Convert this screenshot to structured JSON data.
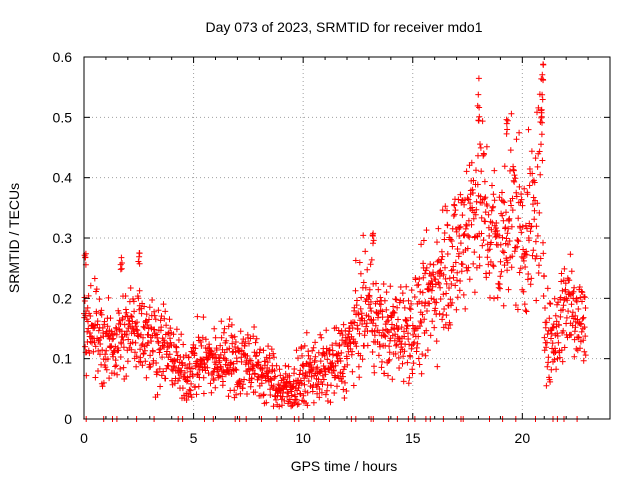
{
  "chart_data": {
    "type": "scatter",
    "title": "Day 073 of 2023, SRMTID for receiver mdo1",
    "xlabel": "GPS time / hours",
    "ylabel": "SRMTID / TECUs",
    "xlim": [
      0,
      24
    ],
    "ylim": [
      0,
      0.6
    ],
    "grid": true,
    "x_ticks": [
      0,
      5,
      10,
      15,
      20
    ],
    "x_tick_labels": [
      "0",
      "5",
      "10",
      "15",
      "20"
    ],
    "y_ticks": [
      0,
      0.1,
      0.2,
      0.3,
      0.4,
      0.5,
      0.6
    ],
    "y_tick_labels": [
      "0",
      "0.1",
      "0.2",
      "0.3",
      "0.4",
      "0.5",
      "0.6"
    ],
    "marker": "+",
    "series": [
      {
        "name": "SRMTID",
        "color": "#ff0000",
        "trend": [
          [
            0.0,
            0.17
          ],
          [
            0.5,
            0.15
          ],
          [
            1.0,
            0.12
          ],
          [
            1.5,
            0.13
          ],
          [
            2.0,
            0.14
          ],
          [
            2.5,
            0.16
          ],
          [
            3.0,
            0.14
          ],
          [
            3.5,
            0.12
          ],
          [
            4.0,
            0.11
          ],
          [
            4.5,
            0.07
          ],
          [
            5.0,
            0.09
          ],
          [
            5.5,
            0.1
          ],
          [
            6.0,
            0.09
          ],
          [
            6.5,
            0.11
          ],
          [
            7.0,
            0.09
          ],
          [
            7.5,
            0.1
          ],
          [
            8.0,
            0.08
          ],
          [
            8.5,
            0.07
          ],
          [
            9.0,
            0.05
          ],
          [
            9.5,
            0.05
          ],
          [
            10.0,
            0.07
          ],
          [
            10.5,
            0.08
          ],
          [
            11.0,
            0.08
          ],
          [
            11.5,
            0.09
          ],
          [
            12.0,
            0.11
          ],
          [
            12.5,
            0.16
          ],
          [
            13.0,
            0.19
          ],
          [
            13.5,
            0.15
          ],
          [
            14.0,
            0.14
          ],
          [
            14.5,
            0.15
          ],
          [
            15.0,
            0.15
          ],
          [
            15.5,
            0.18
          ],
          [
            16.0,
            0.22
          ],
          [
            16.5,
            0.26
          ],
          [
            17.0,
            0.27
          ],
          [
            17.5,
            0.33
          ],
          [
            18.0,
            0.38
          ],
          [
            18.5,
            0.31
          ],
          [
            19.0,
            0.28
          ],
          [
            19.5,
            0.36
          ],
          [
            20.0,
            0.3
          ],
          [
            20.5,
            0.32
          ],
          [
            20.9,
            0.42
          ],
          [
            21.0,
            0.2
          ],
          [
            21.2,
            0.12
          ],
          [
            21.5,
            0.14
          ],
          [
            22.0,
            0.2
          ],
          [
            22.5,
            0.18
          ],
          [
            22.9,
            0.15
          ]
        ],
        "peaks": [
          [
            0.05,
            0.28
          ],
          [
            1.7,
            0.27
          ],
          [
            2.5,
            0.28
          ],
          [
            13.2,
            0.31
          ],
          [
            18.0,
            0.52
          ],
          [
            19.3,
            0.5
          ],
          [
            20.95,
            0.59
          ],
          [
            20.9,
            0.52
          ]
        ],
        "zero_points_x": [
          0.1,
          0.9,
          1.3,
          1.5,
          2.4,
          3.2,
          4.3,
          4.5,
          5.5,
          5.9,
          6.9,
          7.1,
          7.4,
          8.1,
          8.8,
          9.6,
          9.8,
          10.5,
          11.2,
          12.2,
          12.4,
          13.1,
          13.2,
          13.9,
          14.3,
          14.8,
          15.1,
          15.6,
          15.8,
          16.4,
          17.2,
          17.3,
          18.5,
          19.1,
          19.7,
          20.6,
          21.4,
          21.6,
          21.9,
          22.5
        ]
      }
    ]
  }
}
